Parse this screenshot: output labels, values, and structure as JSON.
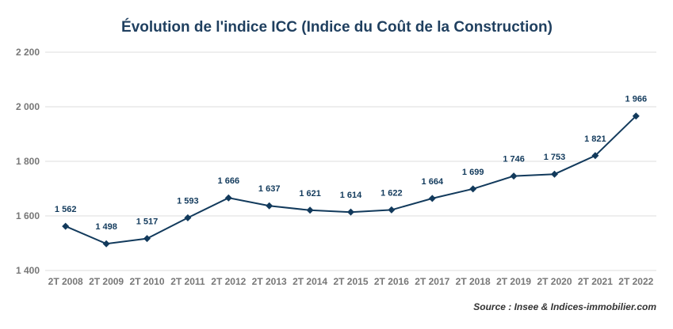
{
  "colors": {
    "title": "#1f3f5f",
    "series": "#123a5c",
    "label": "#123a5c",
    "tick": "#777777",
    "grid": "#dddddd",
    "source": "#333333"
  },
  "chart_data": {
    "type": "line",
    "title": "Évolution de l'indice ICC (Indice du Coût de la Construction)",
    "source": "Source : Insee & Indices-immobilier.com",
    "categories": [
      "2T 2008",
      "2T 2009",
      "2T 2010",
      "2T 2011",
      "2T 2012",
      "2T 2013",
      "2T 2014",
      "2T 2015",
      "2T 2016",
      "2T 2017",
      "2T 2018",
      "2T 2019",
      "2T 2020",
      "2T 2021",
      "2T 2022"
    ],
    "values": [
      1562,
      1498,
      1517,
      1593,
      1666,
      1637,
      1621,
      1614,
      1622,
      1664,
      1699,
      1746,
      1753,
      1821,
      1966
    ],
    "value_labels": [
      "1 562",
      "1 498",
      "1 517",
      "1 593",
      "1 666",
      "1 637",
      "1 621",
      "1 614",
      "1 622",
      "1 664",
      "1 699",
      "1 746",
      "1 753",
      "1 821",
      "1 966"
    ],
    "ylim": [
      1400,
      2200
    ],
    "yticks": [
      1400,
      1600,
      1800,
      2000,
      2200
    ],
    "ytick_labels": [
      "1 400",
      "1 600",
      "1 800",
      "2 000",
      "2 200"
    ],
    "grid": true,
    "marker": "diamond"
  }
}
